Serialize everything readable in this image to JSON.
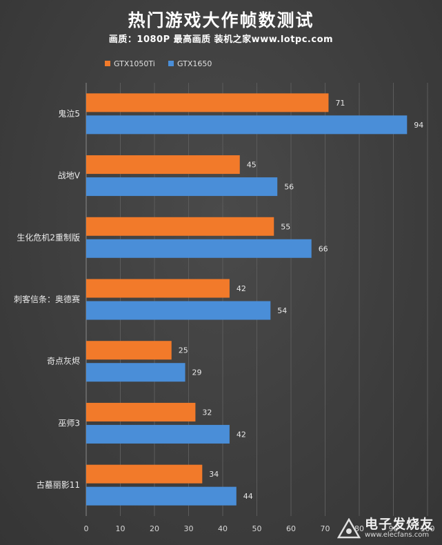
{
  "chart_data": {
    "type": "bar",
    "orientation": "horizontal",
    "title": "热门游戏大作帧数测试",
    "subtitle": "画质：1080P 最高画质 装机之家www.lotpc.com",
    "categories": [
      "鬼泣5",
      "战地V",
      "生化危机2重制版",
      "刺客信条：奥德赛",
      "奇点灰烬",
      "巫师3",
      "古墓丽影11"
    ],
    "series": [
      {
        "name": "GTX1050Ti",
        "color": "#f27a2a",
        "values": [
          71,
          45,
          55,
          42,
          25,
          32,
          34
        ]
      },
      {
        "name": "GTX1650",
        "color": "#4a8ed8",
        "values": [
          94,
          56,
          66,
          54,
          29,
          42,
          44
        ]
      }
    ],
    "xlim": [
      0,
      100
    ],
    "xticks": [
      "0",
      "10",
      "20",
      "30",
      "40",
      "50",
      "60",
      "70",
      "80",
      "90",
      "100"
    ],
    "grid": true,
    "legend": "top-left"
  },
  "watermark": {
    "cn": "电子发烧友",
    "url": "www.elecfans.com"
  }
}
